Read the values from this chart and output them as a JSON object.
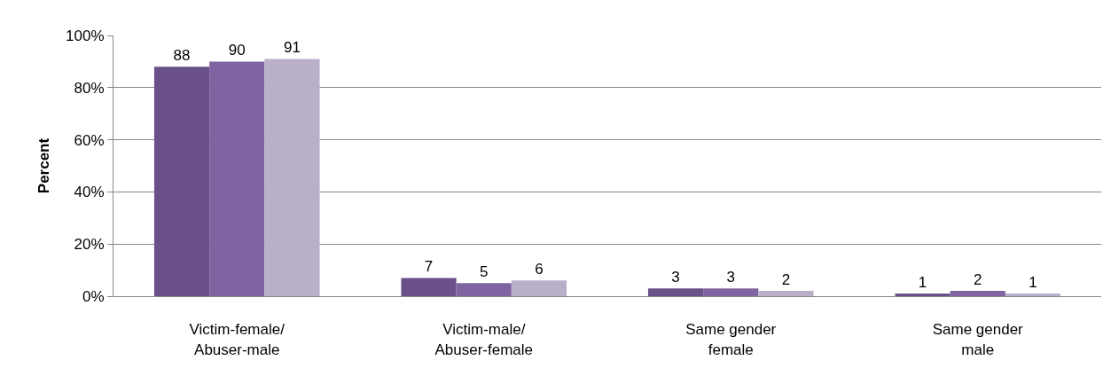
{
  "chart_data": {
    "type": "bar",
    "ylabel": "Percent",
    "categories": [
      "Victim-female/\nAbuser-male",
      "Victim-male/\nAbuser-female",
      "Same gender\nfemale",
      "Same gender\nmale"
    ],
    "series": [
      {
        "color": "#6a5088",
        "values": [
          88,
          7,
          3,
          1
        ]
      },
      {
        "color": "#8064a2",
        "values": [
          90,
          5,
          3,
          2
        ]
      },
      {
        "color": "#b9afca",
        "values": [
          91,
          6,
          2,
          1
        ]
      }
    ],
    "ylim": [
      0,
      100
    ],
    "yticks": [
      {
        "value": 0,
        "label": "0%"
      },
      {
        "value": 20,
        "label": "20%"
      },
      {
        "value": 40,
        "label": "40%"
      },
      {
        "value": 60,
        "label": "60%"
      },
      {
        "value": 80,
        "label": "80%"
      },
      {
        "value": 100,
        "label": "100%"
      }
    ],
    "grid": "y",
    "data_labels": true
  }
}
